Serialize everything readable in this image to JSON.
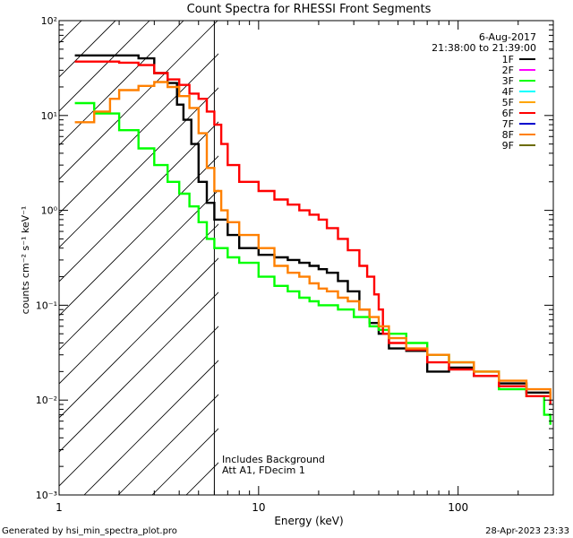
{
  "chart_data": {
    "type": "line",
    "title": "Count Spectra for RHESSI Front Segments",
    "xlabel": "Energy (keV)",
    "ylabel": "counts cm⁻² s⁻¹ keV⁻¹",
    "x_scale": "log",
    "y_scale": "log",
    "xlim": [
      1,
      300
    ],
    "ylim": [
      0.001,
      100
    ],
    "x_tick_labels": [
      "1",
      "10",
      "100"
    ],
    "y_tick_labels": [
      "10⁻³",
      "10⁻²",
      "10⁻¹",
      "10⁰",
      "10¹",
      "10²"
    ],
    "date": "6-Aug-2017",
    "time_range": "21:38:00 to 21:39:00",
    "hatched_region_max_keV": 6,
    "annotations": [
      "Includes Background",
      "Att A1, FDecim  1"
    ],
    "footer_left": "Generated by hsi_min_spectra_plot.pro",
    "footer_right": "28-Apr-2023 23:33",
    "series": [
      {
        "name": "1F",
        "color": "#000000",
        "points": [
          [
            1.2,
            43
          ],
          [
            2,
            43
          ],
          [
            2.5,
            40
          ],
          [
            3,
            28
          ],
          [
            3.5,
            22
          ],
          [
            3.9,
            13
          ],
          [
            4.2,
            9
          ],
          [
            4.6,
            5
          ],
          [
            5,
            2
          ],
          [
            5.5,
            1.2
          ],
          [
            6,
            0.8
          ],
          [
            7,
            0.55
          ],
          [
            8,
            0.4
          ],
          [
            10,
            0.34
          ],
          [
            12,
            0.32
          ],
          [
            14,
            0.3
          ],
          [
            16,
            0.28
          ],
          [
            18,
            0.26
          ],
          [
            20,
            0.24
          ],
          [
            22,
            0.22
          ],
          [
            25,
            0.18
          ],
          [
            28,
            0.14
          ],
          [
            32,
            0.09
          ],
          [
            36,
            0.065
          ],
          [
            40,
            0.05
          ],
          [
            45,
            0.035
          ],
          [
            55,
            0.033
          ],
          [
            70,
            0.02
          ],
          [
            90,
            0.022
          ],
          [
            120,
            0.018
          ],
          [
            160,
            0.015
          ],
          [
            220,
            0.012
          ],
          [
            290,
            0.01
          ]
        ]
      },
      {
        "name": "2F",
        "color": "#ff00ff",
        "points": []
      },
      {
        "name": "3F",
        "color": "#00ff00",
        "points": [
          [
            1.2,
            13.5
          ],
          [
            1.5,
            10.5
          ],
          [
            2,
            7
          ],
          [
            2.5,
            4.5
          ],
          [
            3,
            3
          ],
          [
            3.5,
            2
          ],
          [
            4,
            1.5
          ],
          [
            4.5,
            1.1
          ],
          [
            5,
            0.75
          ],
          [
            5.5,
            0.5
          ],
          [
            6,
            0.4
          ],
          [
            7,
            0.32
          ],
          [
            8,
            0.28
          ],
          [
            10,
            0.2
          ],
          [
            12,
            0.16
          ],
          [
            14,
            0.14
          ],
          [
            16,
            0.12
          ],
          [
            18,
            0.11
          ],
          [
            20,
            0.1
          ],
          [
            25,
            0.09
          ],
          [
            30,
            0.075
          ],
          [
            36,
            0.06
          ],
          [
            40,
            0.055
          ],
          [
            45,
            0.05
          ],
          [
            55,
            0.04
          ],
          [
            70,
            0.03
          ],
          [
            90,
            0.025
          ],
          [
            120,
            0.02
          ],
          [
            160,
            0.013
          ],
          [
            220,
            0.011
          ],
          [
            270,
            0.007
          ],
          [
            290,
            0.0055
          ]
        ]
      },
      {
        "name": "4F",
        "color": "#00ffff",
        "points": []
      },
      {
        "name": "5F",
        "color": "#ffa500",
        "points": []
      },
      {
        "name": "6F",
        "color": "#ff0000",
        "points": [
          [
            1.2,
            37
          ],
          [
            2,
            36
          ],
          [
            2.5,
            34
          ],
          [
            3,
            28
          ],
          [
            3.5,
            24
          ],
          [
            4,
            21
          ],
          [
            4.5,
            17
          ],
          [
            5,
            15
          ],
          [
            5.5,
            11
          ],
          [
            6,
            8
          ],
          [
            6.5,
            5
          ],
          [
            7,
            3
          ],
          [
            8,
            2
          ],
          [
            10,
            1.6
          ],
          [
            12,
            1.3
          ],
          [
            14,
            1.15
          ],
          [
            16,
            1
          ],
          [
            18,
            0.9
          ],
          [
            20,
            0.8
          ],
          [
            22,
            0.65
          ],
          [
            25,
            0.5
          ],
          [
            28,
            0.38
          ],
          [
            32,
            0.26
          ],
          [
            35,
            0.2
          ],
          [
            38,
            0.13
          ],
          [
            40,
            0.09
          ],
          [
            42,
            0.05
          ],
          [
            45,
            0.04
          ],
          [
            55,
            0.034
          ],
          [
            70,
            0.025
          ],
          [
            90,
            0.021
          ],
          [
            120,
            0.018
          ],
          [
            160,
            0.014
          ],
          [
            220,
            0.011
          ],
          [
            290,
            0.009
          ]
        ]
      },
      {
        "name": "7F",
        "color": "#0000cd",
        "points": []
      },
      {
        "name": "8F",
        "color": "#ff8000",
        "points": [
          [
            1.2,
            8.5
          ],
          [
            1.5,
            11
          ],
          [
            1.8,
            15
          ],
          [
            2,
            18.5
          ],
          [
            2.5,
            20.5
          ],
          [
            3,
            22.5
          ],
          [
            3.5,
            20
          ],
          [
            4,
            16
          ],
          [
            4.5,
            12
          ],
          [
            5,
            6.5
          ],
          [
            5.5,
            2.8
          ],
          [
            6,
            1.6
          ],
          [
            6.5,
            1
          ],
          [
            7,
            0.75
          ],
          [
            8,
            0.55
          ],
          [
            10,
            0.4
          ],
          [
            12,
            0.26
          ],
          [
            14,
            0.22
          ],
          [
            16,
            0.2
          ],
          [
            18,
            0.17
          ],
          [
            20,
            0.15
          ],
          [
            22,
            0.14
          ],
          [
            25,
            0.12
          ],
          [
            28,
            0.11
          ],
          [
            32,
            0.09
          ],
          [
            36,
            0.075
          ],
          [
            40,
            0.06
          ],
          [
            45,
            0.045
          ],
          [
            55,
            0.035
          ],
          [
            70,
            0.03
          ],
          [
            90,
            0.025
          ],
          [
            120,
            0.02
          ],
          [
            160,
            0.016
          ],
          [
            220,
            0.013
          ],
          [
            290,
            0.01
          ]
        ]
      },
      {
        "name": "9F",
        "color": "#6b6b00",
        "points": []
      }
    ]
  }
}
